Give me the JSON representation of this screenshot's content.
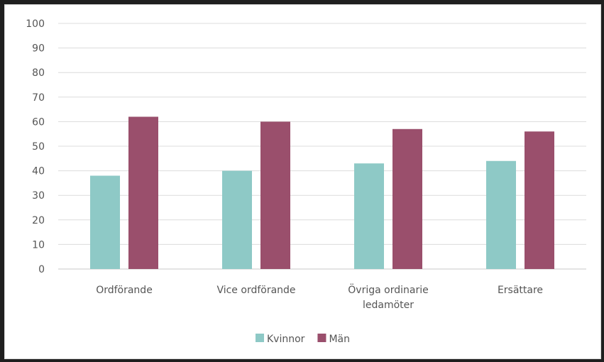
{
  "chart_data": {
    "type": "bar",
    "categories": [
      [
        "Ordförande"
      ],
      [
        "Vice ordförande"
      ],
      [
        "Övriga ordinarie",
        "ledamöter"
      ],
      [
        "Ersättare"
      ]
    ],
    "series": [
      {
        "name": "Kvinnor",
        "values": [
          38,
          40,
          43,
          44
        ],
        "color": "#8ec9c6"
      },
      {
        "name": "Män",
        "values": [
          62,
          60,
          57,
          56
        ],
        "color": "#9a4f6c"
      }
    ],
    "y_ticks": [
      "0",
      "10",
      "20",
      "30",
      "40",
      "50",
      "60",
      "70",
      "80",
      "90",
      "100"
    ],
    "ylim": [
      0,
      100
    ],
    "grid": true,
    "legend": "bottom"
  }
}
